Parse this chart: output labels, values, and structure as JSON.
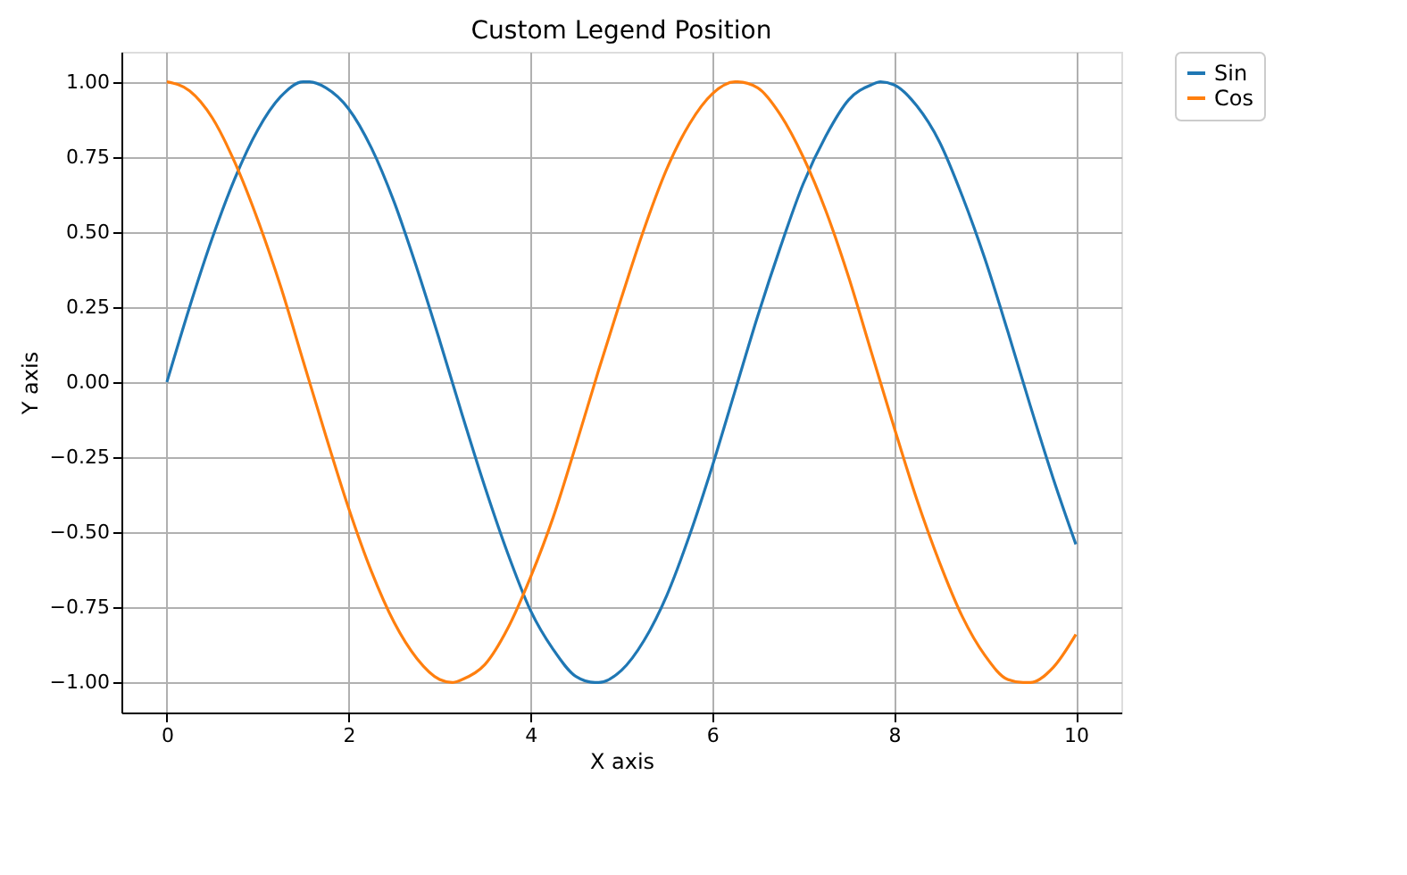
{
  "chart_data": {
    "type": "line",
    "title": "Custom Legend Position",
    "xlabel": "X axis",
    "ylabel": "Y axis",
    "series": [
      {
        "name": "Sin",
        "color": "#1f77b4",
        "x": [
          0,
          0.25,
          0.5,
          0.75,
          1,
          1.25,
          1.5,
          1.57,
          1.75,
          2,
          2.25,
          2.5,
          2.75,
          3,
          3.25,
          3.5,
          3.75,
          4,
          4.25,
          4.5,
          4.71,
          4.75,
          5,
          5.25,
          5.5,
          5.75,
          6,
          6.25,
          6.5,
          6.75,
          7,
          7.25,
          7.5,
          7.75,
          7.85,
          8,
          8.25,
          8.5,
          8.75,
          9,
          9.25,
          9.5,
          9.75,
          10
        ],
        "values": [
          0,
          0.25,
          0.48,
          0.68,
          0.84,
          0.95,
          1.0,
          1.0,
          0.98,
          0.91,
          0.78,
          0.6,
          0.38,
          0.14,
          -0.11,
          -0.35,
          -0.57,
          -0.76,
          -0.89,
          -0.98,
          -1.0,
          -1.0,
          -0.96,
          -0.86,
          -0.71,
          -0.51,
          -0.28,
          -0.03,
          0.22,
          0.45,
          0.66,
          0.82,
          0.94,
          0.99,
          1.0,
          0.99,
          0.92,
          0.8,
          0.62,
          0.41,
          0.17,
          -0.08,
          -0.32,
          -0.54
        ]
      },
      {
        "name": "Cos",
        "color": "#ff7f0e",
        "x": [
          0,
          0.25,
          0.5,
          0.75,
          1,
          1.25,
          1.5,
          1.75,
          2,
          2.25,
          2.5,
          2.75,
          3,
          3.14,
          3.25,
          3.5,
          3.75,
          4,
          4.25,
          4.5,
          4.75,
          5,
          5.25,
          5.5,
          5.75,
          6,
          6.25,
          6.28,
          6.5,
          6.75,
          7,
          7.25,
          7.5,
          7.75,
          8,
          8.25,
          8.5,
          8.75,
          9,
          9.25,
          9.42,
          9.5,
          9.75,
          10
        ],
        "values": [
          1.0,
          0.97,
          0.88,
          0.73,
          0.54,
          0.32,
          0.07,
          -0.18,
          -0.42,
          -0.63,
          -0.8,
          -0.92,
          -0.99,
          -1.0,
          -0.99,
          -0.94,
          -0.82,
          -0.65,
          -0.45,
          -0.21,
          0.04,
          0.28,
          0.51,
          0.71,
          0.86,
          0.96,
          1.0,
          1.0,
          0.98,
          0.89,
          0.75,
          0.57,
          0.35,
          0.1,
          -0.15,
          -0.39,
          -0.6,
          -0.78,
          -0.91,
          -0.99,
          -1.0,
          -1.0,
          -0.95,
          -0.84
        ]
      }
    ],
    "xlim": [
      -0.5,
      10.5
    ],
    "xticks": [
      0,
      2,
      4,
      6,
      8,
      10
    ],
    "ylim": [
      -1.1,
      1.1
    ],
    "yticks": [
      {
        "value": -1,
        "label": "−1.00"
      },
      {
        "value": -0.75,
        "label": "−0.75"
      },
      {
        "value": -0.5,
        "label": "−0.50"
      },
      {
        "value": -0.25,
        "label": "−0.25"
      },
      {
        "value": 0,
        "label": "0.00"
      },
      {
        "value": 0.25,
        "label": "0.25"
      },
      {
        "value": 0.5,
        "label": "0.50"
      },
      {
        "value": 0.75,
        "label": "0.75"
      },
      {
        "value": 1,
        "label": "1.00"
      }
    ],
    "grid": true,
    "legend": "top right",
    "marker": "none",
    "line_style": "solid"
  }
}
